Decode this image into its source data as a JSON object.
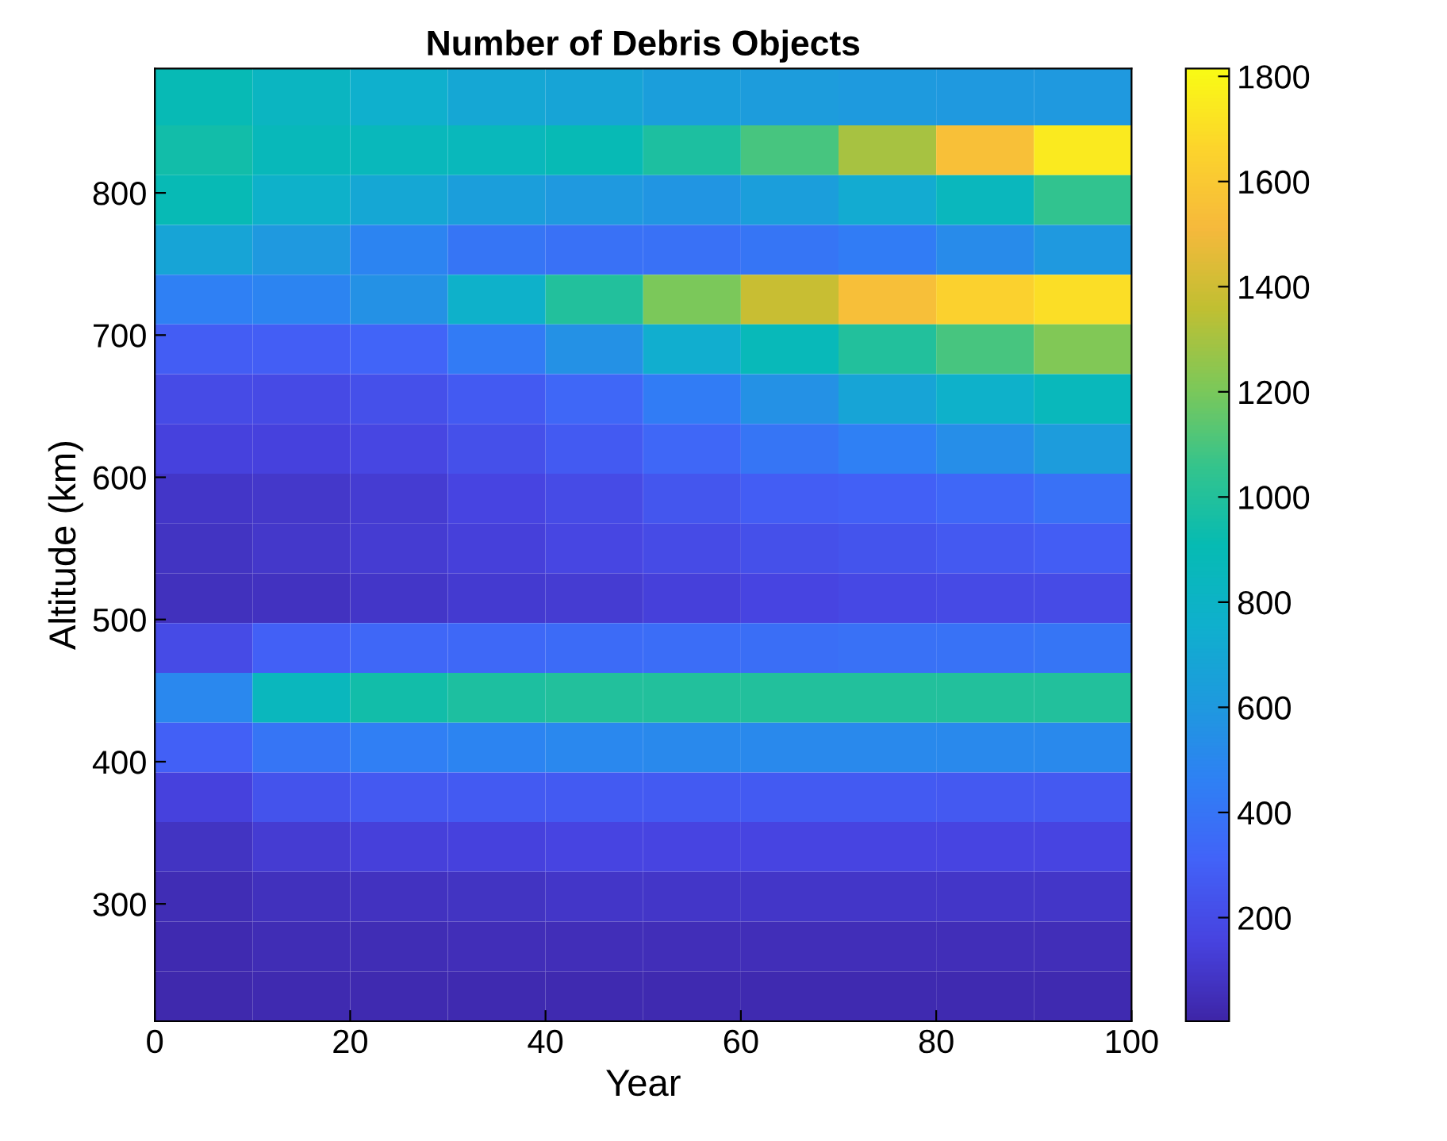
{
  "chart_data": {
    "type": "heatmap",
    "title": "Number of Debris Objects",
    "xlabel": "Year",
    "ylabel": "Altitude (km)",
    "x": [
      5,
      15,
      25,
      35,
      45,
      55,
      65,
      75,
      85,
      95
    ],
    "y": [
      865,
      830,
      795,
      760,
      725,
      690,
      655,
      620,
      585,
      550,
      515,
      480,
      445,
      410,
      375,
      340,
      305,
      270,
      235
    ],
    "cells": [
      [
        900,
        830,
        760,
        700,
        680,
        640,
        620,
        610,
        600,
        600
      ],
      [
        950,
        870,
        860,
        860,
        900,
        980,
        1100,
        1300,
        1550,
        1750
      ],
      [
        900,
        780,
        700,
        640,
        600,
        580,
        640,
        720,
        850,
        1050
      ],
      [
        680,
        600,
        480,
        400,
        380,
        380,
        400,
        440,
        520,
        600
      ],
      [
        460,
        480,
        560,
        780,
        1000,
        1200,
        1380,
        1540,
        1640,
        1700
      ],
      [
        280,
        290,
        320,
        430,
        560,
        740,
        880,
        1000,
        1100,
        1220
      ],
      [
        200,
        190,
        220,
        270,
        330,
        440,
        560,
        680,
        780,
        860
      ],
      [
        150,
        150,
        170,
        220,
        270,
        330,
        400,
        460,
        540,
        620
      ],
      [
        90,
        100,
        120,
        160,
        200,
        250,
        280,
        300,
        330,
        380
      ],
      [
        80,
        100,
        120,
        140,
        170,
        200,
        220,
        240,
        260,
        280
      ],
      [
        60,
        70,
        90,
        110,
        120,
        140,
        160,
        180,
        190,
        200
      ],
      [
        200,
        300,
        330,
        340,
        350,
        360,
        370,
        380,
        390,
        400
      ],
      [
        500,
        850,
        950,
        980,
        1000,
        1000,
        1000,
        1000,
        1000,
        1000
      ],
      [
        300,
        400,
        450,
        480,
        500,
        510,
        510,
        510,
        510,
        510
      ],
      [
        150,
        230,
        260,
        270,
        270,
        270,
        270,
        270,
        260,
        260
      ],
      [
        80,
        120,
        140,
        150,
        160,
        160,
        160,
        160,
        160,
        160
      ],
      [
        40,
        60,
        70,
        80,
        90,
        90,
        90,
        90,
        90,
        90
      ],
      [
        30,
        40,
        40,
        50,
        50,
        50,
        50,
        50,
        50,
        50
      ],
      [
        20,
        25,
        30,
        30,
        30,
        30,
        30,
        30,
        30,
        30
      ]
    ],
    "xlim": [
      0,
      100
    ],
    "ylim": [
      217.5,
      887.5
    ],
    "xticks": [
      0,
      20,
      40,
      60,
      80,
      100
    ],
    "yticks": [
      300,
      400,
      500,
      600,
      700,
      800
    ],
    "clim": [
      3,
      1815
    ],
    "cticks": [
      200,
      400,
      600,
      800,
      1000,
      1200,
      1400,
      1600,
      1800
    ],
    "grid": false
  }
}
